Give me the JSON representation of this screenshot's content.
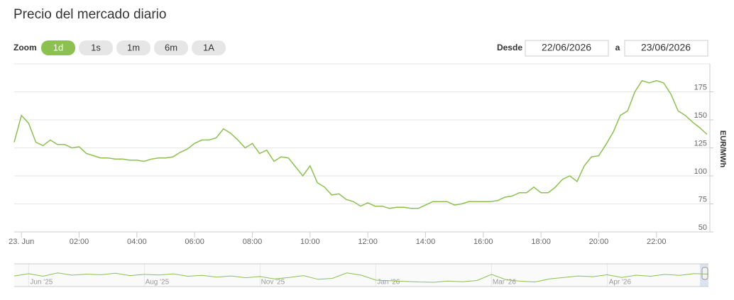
{
  "ui": {
    "zoom_label": "Zoom",
    "buttons": [
      "1d",
      "1s",
      "1m",
      "6m",
      "1A"
    ],
    "active_button": 0,
    "from_label": "Desde",
    "from_date": "22/06/2026",
    "to_label": "a",
    "to_date": "23/06/2026"
  },
  "chart_data": [
    {
      "type": "line",
      "title": "Precio del mercado diario",
      "y_axis_label": "EUR/MWh",
      "color": "#8cc152",
      "grid": true,
      "x": [
        -0.25,
        0,
        0.25,
        0.5,
        0.75,
        1,
        1.25,
        1.5,
        1.75,
        2,
        2.25,
        2.5,
        2.75,
        3,
        3.25,
        3.5,
        3.75,
        4,
        4.25,
        4.5,
        4.75,
        5,
        5.25,
        5.5,
        5.75,
        6,
        6.25,
        6.5,
        6.75,
        7,
        7.25,
        7.5,
        7.75,
        8,
        8.25,
        8.5,
        8.75,
        9,
        9.25,
        9.5,
        9.75,
        10,
        10.25,
        10.5,
        10.75,
        11,
        11.25,
        11.5,
        11.75,
        12,
        12.25,
        12.5,
        12.75,
        13,
        13.25,
        13.5,
        13.75,
        14,
        14.25,
        14.5,
        14.75,
        15,
        15.25,
        15.5,
        15.75,
        16,
        16.25,
        16.5,
        16.75,
        17,
        17.25,
        17.5,
        17.75,
        18,
        18.25,
        18.5,
        18.75,
        19,
        19.25,
        19.5,
        19.75,
        20,
        20.25,
        20.5,
        20.75,
        21,
        21.25,
        21.5,
        21.75,
        22,
        22.25,
        22.5,
        22.75,
        23,
        23.25,
        23.5,
        23.75
      ],
      "values": [
        130,
        154,
        147,
        130,
        127,
        132,
        128,
        128,
        125,
        126,
        120,
        118,
        116,
        116,
        115,
        115,
        114,
        114,
        113,
        115,
        116,
        116,
        117,
        121,
        124,
        129,
        132,
        132,
        134,
        142,
        138,
        132,
        125,
        129,
        120,
        123,
        113,
        117,
        116,
        108,
        100,
        109,
        94,
        90,
        83,
        84,
        79,
        77,
        73,
        76,
        73,
        73,
        71,
        72,
        72,
        71,
        71,
        74,
        77,
        77,
        77,
        74,
        75,
        77,
        77,
        77,
        77,
        78,
        81,
        82,
        85,
        85,
        90,
        85,
        85,
        90,
        97,
        100,
        95,
        109,
        117,
        118,
        128,
        139,
        154,
        158,
        175,
        185,
        183,
        185,
        183,
        173,
        158,
        154,
        148,
        143,
        137
      ],
      "xlim": [
        -0.25,
        23.85
      ],
      "xticks": [
        {
          "value": 0,
          "label": "23. Jun"
        },
        {
          "value": 2,
          "label": "02:00"
        },
        {
          "value": 4,
          "label": "04:00"
        },
        {
          "value": 6,
          "label": "06:00"
        },
        {
          "value": 8,
          "label": "08:00"
        },
        {
          "value": 10,
          "label": "10:00"
        },
        {
          "value": 12,
          "label": "12:00"
        },
        {
          "value": 14,
          "label": "14:00"
        },
        {
          "value": 16,
          "label": "16:00"
        },
        {
          "value": 18,
          "label": "18:00"
        },
        {
          "value": 20,
          "label": "20:00"
        },
        {
          "value": 22,
          "label": "22:00"
        }
      ],
      "ylim": [
        50,
        200
      ],
      "yticks": [
        50,
        75,
        100,
        125,
        150,
        175
      ]
    },
    {
      "type": "navigator",
      "color": "#8cc152",
      "x": [
        0,
        0.25,
        0.5,
        0.75,
        1,
        1.25,
        1.5,
        1.75,
        2,
        2.25,
        2.5,
        2.75,
        3,
        3.25,
        3.5,
        3.75,
        4,
        4.25,
        4.5,
        4.75,
        5,
        5.25,
        5.5,
        5.75,
        6,
        6.25,
        6.5,
        6.75,
        7,
        7.25,
        7.5,
        7.75,
        8,
        8.25,
        8.5,
        8.75,
        9,
        9.25,
        9.5,
        9.75,
        10,
        10.25,
        10.5,
        10.75,
        11,
        11.25,
        11.5,
        11.75,
        12
      ],
      "values": [
        120,
        135,
        118,
        140,
        125,
        132,
        128,
        138,
        122,
        130,
        126,
        134,
        118,
        124,
        112,
        120,
        108,
        116,
        100,
        110,
        122,
        98,
        104,
        140,
        125,
        92,
        88,
        84,
        80,
        78,
        86,
        82,
        90,
        130,
        95,
        85,
        80,
        100,
        110,
        120,
        115,
        128,
        110,
        125,
        118,
        130,
        124,
        136,
        132
      ],
      "xlim": [
        0,
        12
      ],
      "xticks": [
        {
          "value": 0.25,
          "label": "Jun '25"
        },
        {
          "value": 2.25,
          "label": "Aug '25"
        },
        {
          "value": 4.25,
          "label": "Nov '25"
        },
        {
          "value": 6.25,
          "label": "Jan '26"
        },
        {
          "value": 8.25,
          "label": "Mar '26"
        },
        {
          "value": 10.25,
          "label": "Apr '26"
        }
      ],
      "ylim": [
        50,
        200
      ]
    }
  ]
}
